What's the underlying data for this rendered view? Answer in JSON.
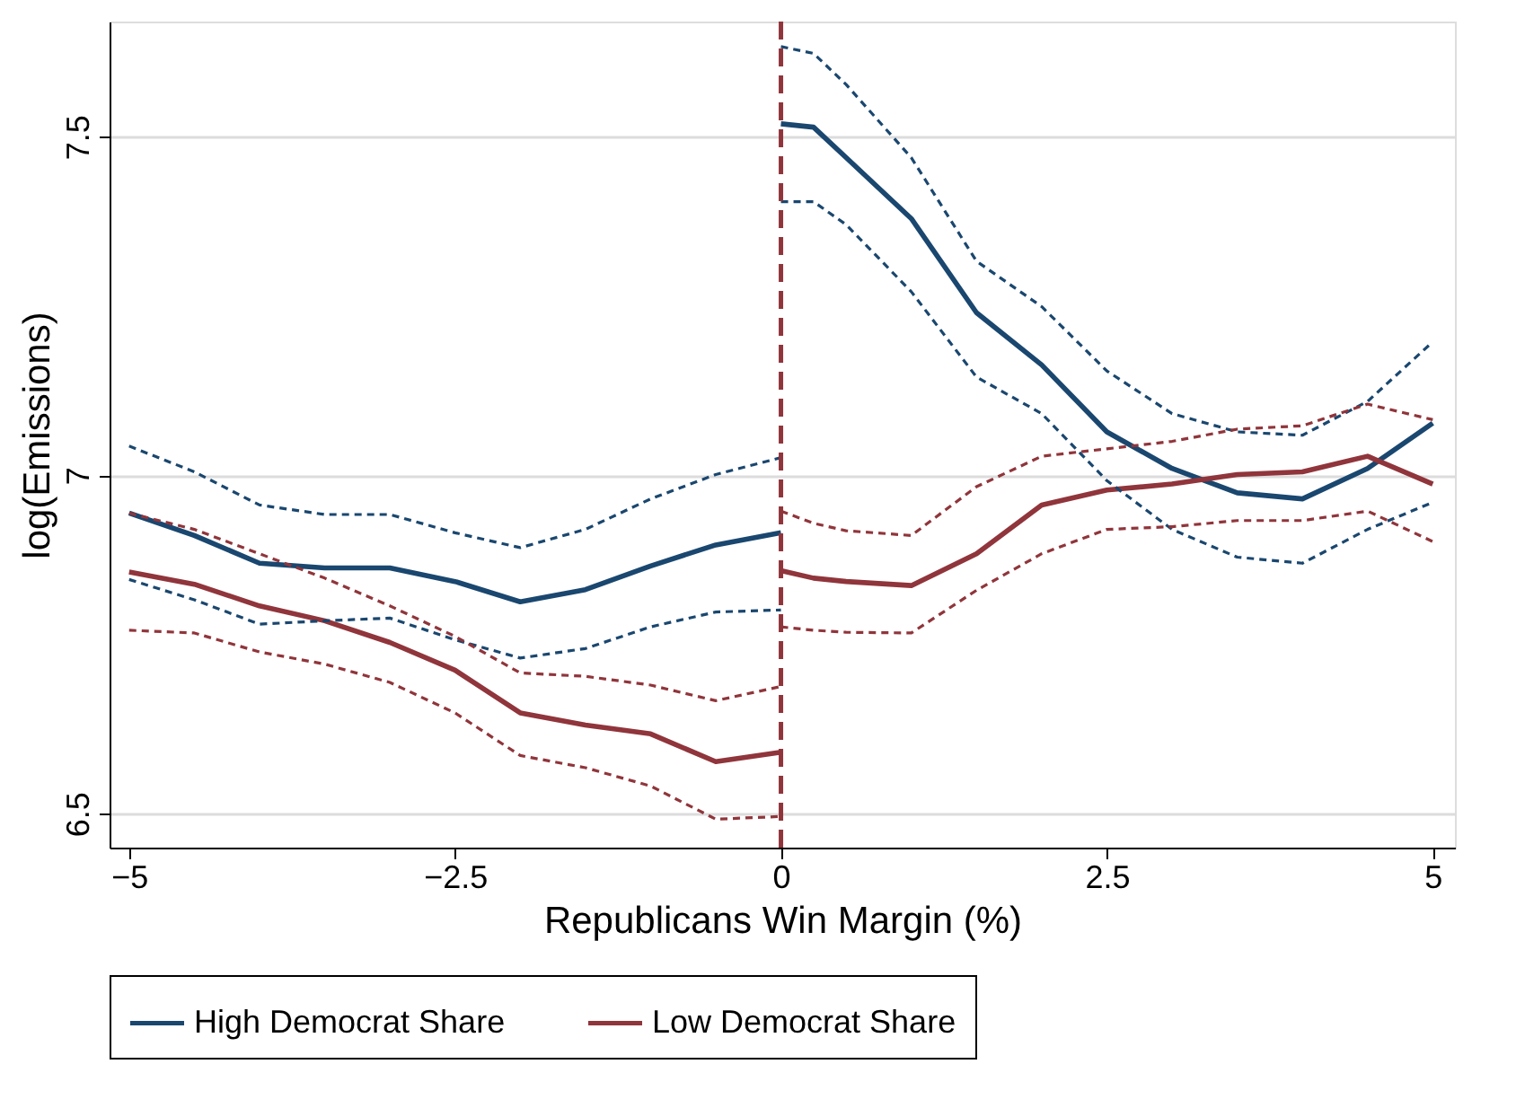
{
  "chart_data": {
    "type": "line",
    "xlabel": "Republicans Win Margin (%)",
    "ylabel": "log(Emissions)",
    "xlim": [
      -5.15,
      5.17
    ],
    "ylim": [
      6.45,
      7.67
    ],
    "xticks": [
      {
        "value": -5,
        "label": "−5"
      },
      {
        "value": -2.5,
        "label": "−2.5"
      },
      {
        "value": 0,
        "label": "0"
      },
      2.5,
      {
        "value": 5,
        "label": "5"
      }
    ],
    "yticks": [
      6.5,
      {
        "value": 7,
        "label": "7"
      },
      7.5
    ],
    "grid": "y",
    "legend": "bottom",
    "marker": "none",
    "x": [
      -5,
      -4.5,
      -4,
      -3.5,
      -3,
      -2.5,
      -2,
      -1.5,
      -1,
      -0.5,
      0,
      0,
      0.25,
      0.5,
      1,
      1.5,
      2,
      2.5,
      3,
      3.5,
      4,
      4.5,
      5
    ],
    "ref_lines": [
      {
        "axis": "x",
        "value": 0,
        "color": "#90353b",
        "line_style": "dashed"
      }
    ],
    "series": [
      {
        "name": "High Democrat Share",
        "color": "#1a476f",
        "line_style": "solid",
        "values": [
          6.944,
          6.911,
          6.87,
          6.863,
          6.863,
          6.843,
          6.813,
          6.831,
          6.866,
          6.897,
          6.915,
          7.519,
          7.514,
          7.469,
          7.379,
          7.24,
          7.163,
          7.064,
          7.01,
          6.974,
          6.965,
          7.01,
          7.077
        ]
      },
      {
        "name": "Low Democrat Share",
        "color": "#90353b",
        "line_style": "solid",
        "values": [
          6.857,
          6.839,
          6.807,
          6.785,
          6.753,
          6.712,
          6.649,
          6.631,
          6.618,
          6.577,
          6.591,
          6.859,
          6.848,
          6.843,
          6.837,
          6.884,
          6.956,
          6.978,
          6.987,
          7.001,
          7.005,
          7.028,
          6.987
        ]
      },
      {
        "color": "#1a476f",
        "line_style": "dashed",
        "values": [
          6.846,
          6.816,
          6.78,
          6.785,
          6.789,
          6.757,
          6.73,
          6.744,
          6.776,
          6.798,
          6.801,
          7.404,
          7.404,
          7.37,
          7.271,
          7.145,
          7.091,
          6.992,
          6.92,
          6.879,
          6.87,
          6.92,
          6.96
        ]
      },
      {
        "color": "#1a476f",
        "line_style": "dashed",
        "values": [
          7.043,
          7.005,
          6.956,
          6.942,
          6.942,
          6.915,
          6.893,
          6.92,
          6.965,
          7.001,
          7.026,
          7.633,
          7.623,
          7.577,
          7.469,
          7.316,
          7.249,
          7.154,
          7.091,
          7.064,
          7.059,
          7.109,
          7.197
        ]
      },
      {
        "color": "#90353b",
        "line_style": "dashed",
        "values": [
          6.771,
          6.767,
          6.739,
          6.721,
          6.694,
          6.649,
          6.586,
          6.568,
          6.541,
          6.492,
          6.496,
          6.776,
          6.771,
          6.768,
          6.767,
          6.83,
          6.884,
          6.92,
          6.924,
          6.933,
          6.933,
          6.947,
          6.902
        ]
      },
      {
        "color": "#90353b",
        "line_style": "dashed",
        "values": [
          6.944,
          6.92,
          6.884,
          6.848,
          6.807,
          6.762,
          6.708,
          6.703,
          6.69,
          6.667,
          6.688,
          6.947,
          6.929,
          6.918,
          6.911,
          6.983,
          7.028,
          7.039,
          7.05,
          7.068,
          7.073,
          7.105,
          7.082
        ]
      }
    ]
  }
}
